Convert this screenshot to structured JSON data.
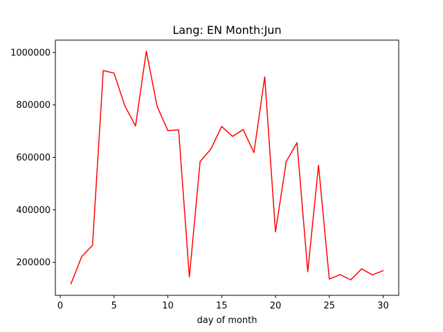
{
  "chart_data": {
    "type": "line",
    "title": "Lang: EN Month:Jun",
    "xlabel": "day of month",
    "ylabel": "",
    "xlim": [
      -0.45,
      31.45
    ],
    "ylim": [
      74000,
      1047000
    ],
    "xticks": [
      0,
      5,
      10,
      15,
      20,
      25,
      30
    ],
    "yticks": [
      200000,
      400000,
      600000,
      800000,
      1000000
    ],
    "grid": false,
    "legend": "none",
    "series": [
      {
        "color": "#ff0000",
        "x": [
          1,
          2,
          3,
          4,
          5,
          6,
          7,
          8,
          9,
          10,
          11,
          12,
          13,
          14,
          15,
          16,
          17,
          18,
          19,
          20,
          21,
          22,
          23,
          24,
          25,
          26,
          27,
          28,
          29,
          30
        ],
        "y": [
          118000,
          222000,
          265000,
          931000,
          921000,
          797000,
          720000,
          1005000,
          795000,
          702000,
          705000,
          144000,
          584000,
          632000,
          718000,
          680000,
          706000,
          618000,
          907000,
          316000,
          584000,
          656000,
          164000,
          570000,
          136000,
          153000,
          133000,
          175000,
          152000,
          168000
        ]
      }
    ]
  }
}
